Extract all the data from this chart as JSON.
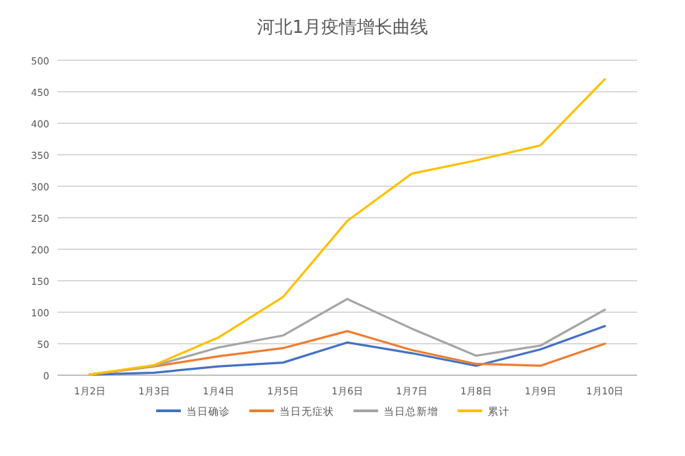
{
  "chart_data": {
    "type": "line",
    "title": "河北1月疫情增长曲线",
    "categories": [
      "1月2日",
      "1月3日",
      "1月4日",
      "1月5日",
      "1月6日",
      "1月7日",
      "1月8日",
      "1月9日",
      "1月10日"
    ],
    "series": [
      {
        "name": "当日确诊",
        "color": "#4472c4",
        "values": [
          1,
          4,
          14,
          20,
          52,
          35,
          15,
          41,
          78
        ]
      },
      {
        "name": "当日无症状",
        "color": "#ed7d31",
        "values": [
          1,
          14,
          30,
          43,
          70,
          40,
          18,
          15,
          50
        ]
      },
      {
        "name": "当日总新增",
        "color": "#a5a5a5",
        "values": [
          1,
          15,
          44,
          63,
          121,
          74,
          31,
          47,
          104
        ]
      },
      {
        "name": "累计",
        "color": "#ffc000",
        "values": [
          1,
          16,
          60,
          124,
          245,
          320,
          341,
          365,
          470
        ]
      }
    ],
    "ylim": [
      0,
      500
    ],
    "yticks": [
      0,
      50,
      100,
      150,
      200,
      250,
      300,
      350,
      400,
      450,
      500
    ],
    "grid": "y",
    "legend": "bottom",
    "marker": "none",
    "line_style": "solid"
  }
}
